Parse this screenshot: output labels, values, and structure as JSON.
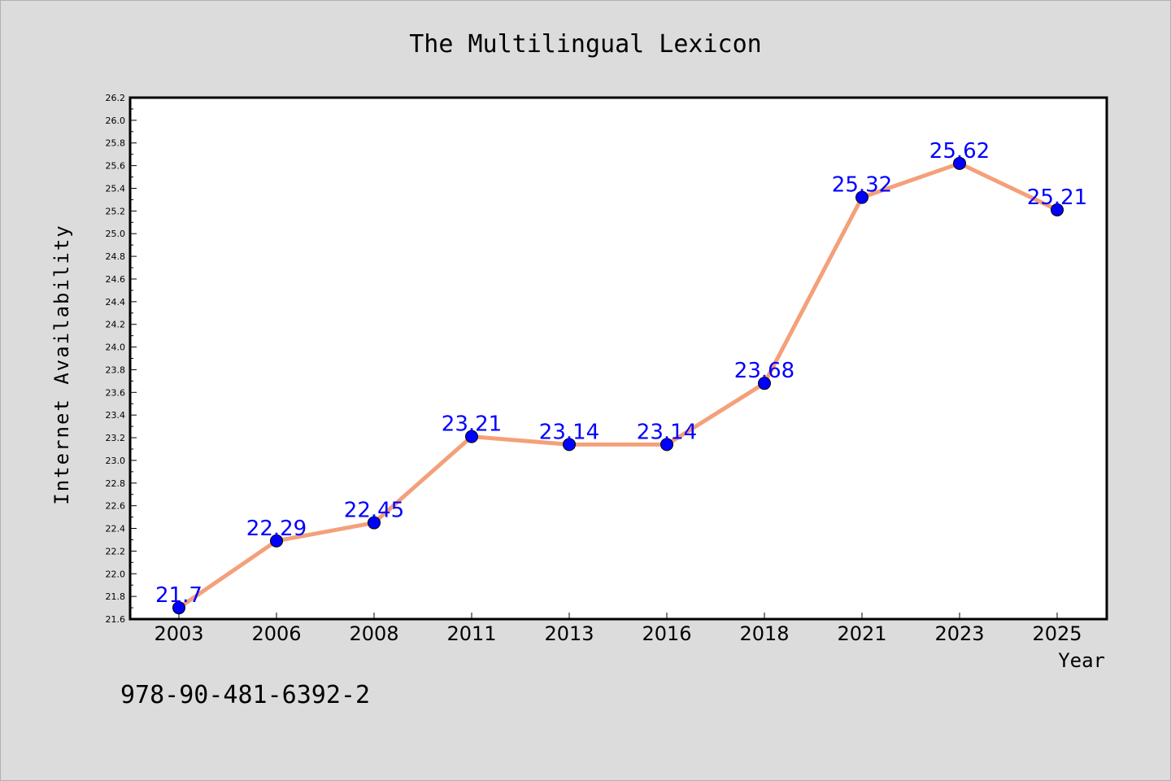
{
  "chart_data": {
    "type": "line",
    "title": "The Multilingual Lexicon",
    "xlabel": "Year",
    "ylabel": "Internet Availability",
    "categories": [
      "2003",
      "2006",
      "2008",
      "2011",
      "2013",
      "2016",
      "2018",
      "2021",
      "2023",
      "2025"
    ],
    "series": [
      {
        "values": [
          21.7,
          22.29,
          22.45,
          23.21,
          23.14,
          23.14,
          23.68,
          25.32,
          25.62,
          25.21
        ],
        "labels": [
          "21.7",
          "22.29",
          "22.45",
          "23.21",
          "23.14",
          "23.14",
          "23.68",
          "25.32",
          "25.62",
          "25.21"
        ],
        "line_color": "#f4a07a",
        "marker_color": "#0000ff"
      }
    ],
    "ylim": [
      21.6,
      26.2
    ],
    "yticks": [
      "21.6",
      "21.8",
      "22.0",
      "22.2",
      "22.4",
      "22.6",
      "22.8",
      "23.0",
      "23.2",
      "23.4",
      "23.6",
      "23.8",
      "24.0",
      "24.2",
      "24.4",
      "24.6",
      "24.8",
      "25.0",
      "25.2",
      "25.4",
      "25.6",
      "25.8",
      "26.0",
      "26.2"
    ],
    "label_color": "#0000ff",
    "grid": false
  },
  "footer": {
    "isbn": "978-90-481-6392-2"
  }
}
